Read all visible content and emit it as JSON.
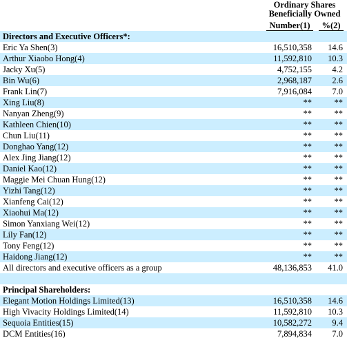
{
  "header": {
    "line1": "Ordinary Shares",
    "line2": "Beneficially Owned",
    "columns": [
      "Number(1)",
      "%(2)"
    ]
  },
  "sections": [
    {
      "title": "Directors and Executive Officers*:",
      "rows": [
        [
          "Eric Ya Shen(3)",
          "16,510,358",
          "14.6"
        ],
        [
          "Arthur Xiaobo Hong(4)",
          "11,592,810",
          "10.3"
        ],
        [
          "Jacky Xu(5)",
          "4,752,155",
          "4.2"
        ],
        [
          "Bin Wu(6)",
          "2,968,187",
          "2.6"
        ],
        [
          "Frank Lin(7)",
          "7,916,084",
          "7.0"
        ],
        [
          "Xing Liu(8)",
          "**",
          "**"
        ],
        [
          "Nanyan Zheng(9)",
          "**",
          "**"
        ],
        [
          "Kathleen Chien(10)",
          "**",
          "**"
        ],
        [
          "Chun Liu(11)",
          "**",
          "**"
        ],
        [
          "Donghao Yang(12)",
          "**",
          "**"
        ],
        [
          "Alex Jing Jiang(12)",
          "**",
          "**"
        ],
        [
          "Daniel Kao(12)",
          "**",
          "**"
        ],
        [
          "Maggie Mei Chuan Hung(12)",
          "**",
          "**"
        ],
        [
          "Yizhi Tang(12)",
          "**",
          "**"
        ],
        [
          "Xianfeng Cai(12)",
          "**",
          "**"
        ],
        [
          "Xiaohui Ma(12)",
          "**",
          "**"
        ],
        [
          "Simon Yanxiang Wei(12)",
          "**",
          "**"
        ],
        [
          "Lily Fan(12)",
          "**",
          "**"
        ],
        [
          "Tony Feng(12)",
          "**",
          "**"
        ],
        [
          "Haidong Jiang(12)",
          "**",
          "**"
        ],
        [
          "All directors and executive officers as a group",
          "48,136,853",
          "41.0"
        ]
      ]
    },
    {
      "title": "Principal Shareholders:",
      "rows": [
        [
          "Elegant Motion Holdings Limited(13)",
          "16,510,358",
          "14.6"
        ],
        [
          "High Vivacity Holdings Limited(14)",
          "11,592,810",
          "10.3"
        ],
        [
          "Sequoia Entities(15)",
          "10,582,272",
          "9.4"
        ],
        [
          "DCM Entities(16)",
          "7,894,834",
          "7.0"
        ]
      ]
    }
  ]
}
